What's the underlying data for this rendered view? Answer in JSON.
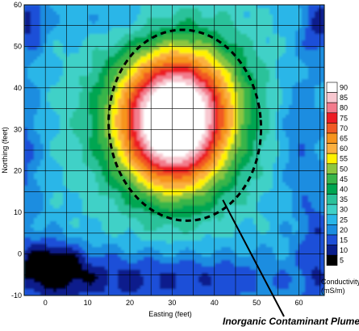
{
  "chart_data": {
    "type": "heatmap",
    "title": "",
    "xlabel": "Easting (feet)",
    "ylabel": "Northing (feet)",
    "xlim": [
      -5,
      66
    ],
    "ylim": [
      -10,
      60
    ],
    "x_ticks": [
      "0",
      "10",
      "20",
      "30",
      "40",
      "50",
      "60"
    ],
    "y_ticks": [
      "-10",
      "0",
      "10",
      "20",
      "30",
      "40",
      "50",
      "60"
    ],
    "grid": true,
    "colorbar": {
      "title_line1": "Conductivity",
      "title_line2": "(mS/m)",
      "levels": [
        {
          "value": 90,
          "label": "90",
          "color": "#ffffff"
        },
        {
          "value": 85,
          "label": "85",
          "color": "#f8c8d0"
        },
        {
          "value": 80,
          "label": "80",
          "color": "#f37b8c"
        },
        {
          "value": 75,
          "label": "75",
          "color": "#ed1c24"
        },
        {
          "value": 70,
          "label": "70",
          "color": "#f15a24"
        },
        {
          "value": 65,
          "label": "65",
          "color": "#f7941d"
        },
        {
          "value": 60,
          "label": "60",
          "color": "#fbb040"
        },
        {
          "value": 55,
          "label": "55",
          "color": "#fff200"
        },
        {
          "value": 50,
          "label": "50",
          "color": "#8dc63f"
        },
        {
          "value": 45,
          "label": "45",
          "color": "#39b54a"
        },
        {
          "value": 40,
          "label": "40",
          "color": "#00a651"
        },
        {
          "value": 35,
          "label": "35",
          "color": "#2bc29a"
        },
        {
          "value": 30,
          "label": "30",
          "color": "#3fd1c7"
        },
        {
          "value": 25,
          "label": "25",
          "color": "#29b6e8"
        },
        {
          "value": 20,
          "label": "20",
          "color": "#1b8de0"
        },
        {
          "value": 15,
          "label": "15",
          "color": "#1e4fd8"
        },
        {
          "value": 10,
          "label": "10",
          "color": "#0a1e8c"
        },
        {
          "value": 5,
          "label": "5",
          "color": "#000000"
        }
      ]
    },
    "peak": {
      "x": 30,
      "y": 32,
      "value": 92
    },
    "plume_ellipse": {
      "cx": 33,
      "cy": 31,
      "rx": 18,
      "ry": 23
    },
    "annotation": {
      "text": "Inorganic Contaminant Plume",
      "points_to": [
        42,
        13
      ]
    }
  }
}
